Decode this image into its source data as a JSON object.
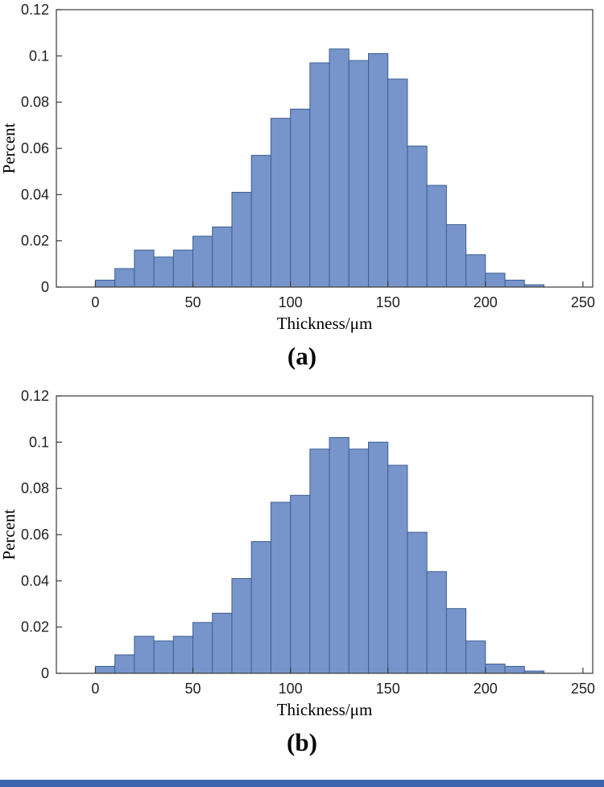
{
  "page": {
    "bottom_strip_color": "#3b66ae"
  },
  "chart_data": [
    {
      "type": "bar",
      "subtype": "histogram",
      "caption": "(a)",
      "title": "",
      "xlabel": "Thickness/μm",
      "ylabel": "Percent",
      "bin_width": 10,
      "bin_starts": [
        0,
        10,
        20,
        30,
        40,
        50,
        60,
        70,
        80,
        90,
        100,
        110,
        120,
        130,
        140,
        150,
        160,
        170,
        180,
        190,
        200,
        210,
        220
      ],
      "values": [
        0.003,
        0.008,
        0.016,
        0.013,
        0.016,
        0.022,
        0.026,
        0.041,
        0.057,
        0.073,
        0.077,
        0.097,
        0.103,
        0.098,
        0.101,
        0.09,
        0.061,
        0.044,
        0.027,
        0.014,
        0.006,
        0.003,
        0.001
      ],
      "xlim": [
        -20,
        255
      ],
      "ylim": [
        0,
        0.12
      ],
      "xticks": [
        0,
        50,
        100,
        150,
        200,
        250
      ],
      "xtick_labels": [
        "0",
        "50",
        "100",
        "150",
        "200",
        "250"
      ],
      "yticks": [
        0,
        0.02,
        0.04,
        0.06,
        0.08,
        0.1,
        0.12
      ],
      "ytick_labels": [
        "0",
        "0.02",
        "0.04",
        "0.06",
        "0.08",
        "0.1",
        "0.12"
      ],
      "grid": false,
      "legend": null,
      "bar_fill": "#7795ca",
      "bar_stroke": "#3c5f91",
      "axis_color": "#3a3a3a"
    },
    {
      "type": "bar",
      "subtype": "histogram",
      "caption": "(b)",
      "title": "",
      "xlabel": "Thickness/μm",
      "ylabel": "Percent",
      "bin_width": 10,
      "bin_starts": [
        0,
        10,
        20,
        30,
        40,
        50,
        60,
        70,
        80,
        90,
        100,
        110,
        120,
        130,
        140,
        150,
        160,
        170,
        180,
        190,
        200,
        210,
        220
      ],
      "values": [
        0.003,
        0.008,
        0.016,
        0.014,
        0.016,
        0.022,
        0.026,
        0.041,
        0.057,
        0.074,
        0.077,
        0.097,
        0.102,
        0.097,
        0.1,
        0.09,
        0.061,
        0.044,
        0.028,
        0.014,
        0.004,
        0.003,
        0.001
      ],
      "xlim": [
        -20,
        255
      ],
      "ylim": [
        0,
        0.12
      ],
      "xticks": [
        0,
        50,
        100,
        150,
        200,
        250
      ],
      "xtick_labels": [
        "0",
        "50",
        "100",
        "150",
        "200",
        "250"
      ],
      "yticks": [
        0,
        0.02,
        0.04,
        0.06,
        0.08,
        0.1,
        0.12
      ],
      "ytick_labels": [
        "0",
        "0.02",
        "0.04",
        "0.06",
        "0.08",
        "0.1",
        "0.12"
      ],
      "grid": false,
      "legend": null,
      "bar_fill": "#7795ca",
      "bar_stroke": "#3c5f91",
      "axis_color": "#3a3a3a"
    }
  ]
}
